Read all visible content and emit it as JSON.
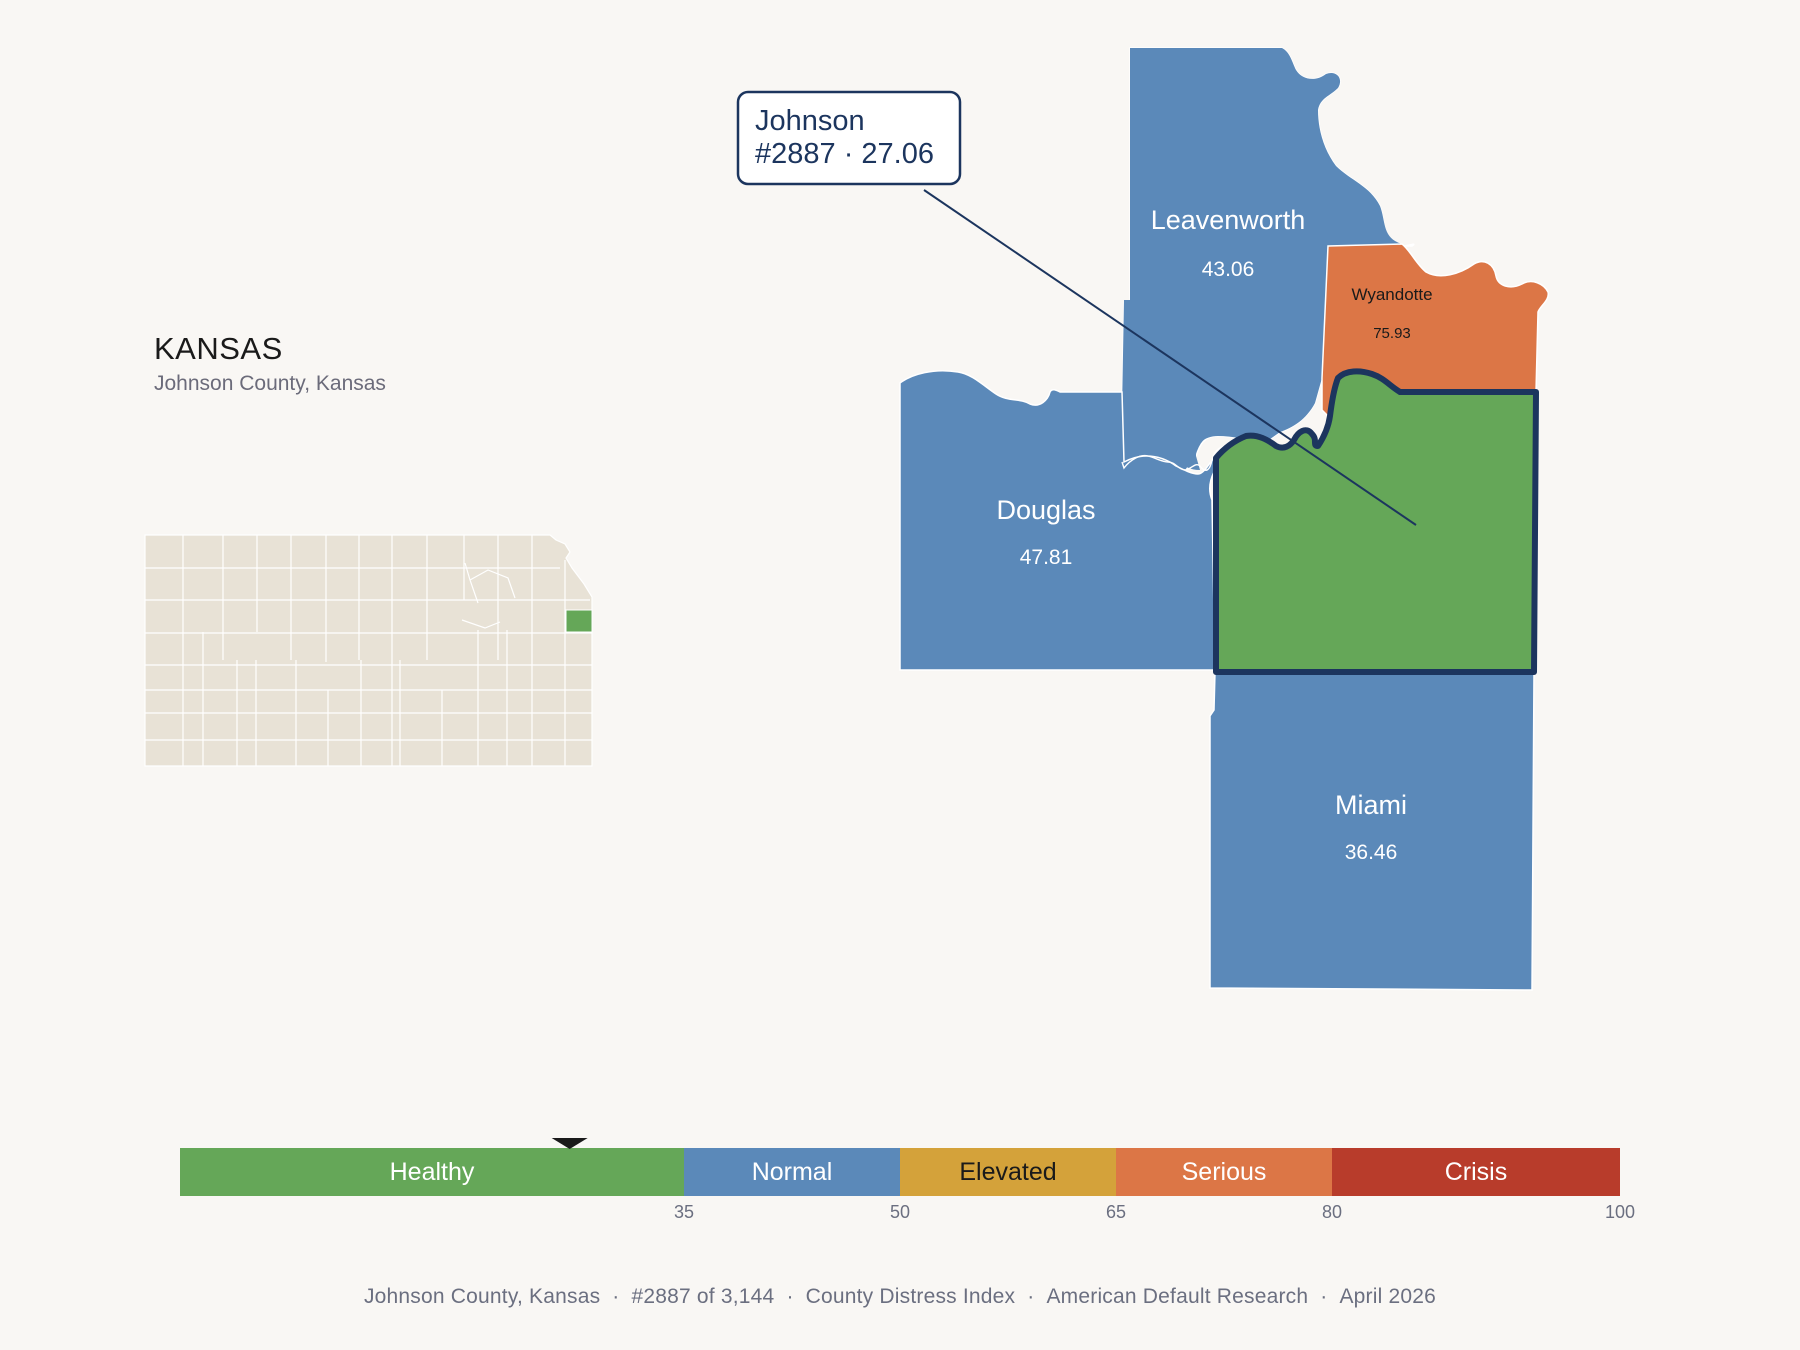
{
  "header": {
    "state_title": "KANSAS",
    "subtitle": "Johnson County, Kansas"
  },
  "callout": {
    "county": "Johnson",
    "detail": "#2887 · 27.06"
  },
  "counties": [
    {
      "name": "Leavenworth",
      "score": "43.06",
      "tier": "Normal",
      "color": "#5b89b9"
    },
    {
      "name": "Wyandotte",
      "score": "75.93",
      "tier": "Serious",
      "color": "#dc7646"
    },
    {
      "name": "Douglas",
      "score": "47.81",
      "tier": "Normal",
      "color": "#5b89b9"
    },
    {
      "name": "Johnson",
      "score": "27.06",
      "tier": "Healthy",
      "color": "#65a758",
      "selected": true
    },
    {
      "name": "Miami",
      "score": "36.46",
      "tier": "Normal",
      "color": "#5b89b9"
    }
  ],
  "legend": {
    "bands": [
      {
        "label": "Healthy",
        "min": 0,
        "max": 35,
        "color": "#65a758",
        "text_color": "#ffffff"
      },
      {
        "label": "Normal",
        "min": 35,
        "max": 50,
        "color": "#5b89b9",
        "text_color": "#ffffff"
      },
      {
        "label": "Elevated",
        "min": 50,
        "max": 65,
        "color": "#d4a23a",
        "text_color": "#1a1a1a"
      },
      {
        "label": "Serious",
        "min": 65,
        "max": 80,
        "color": "#dc7646",
        "text_color": "#ffffff"
      },
      {
        "label": "Crisis",
        "min": 80,
        "max": 100,
        "color": "#b83c2b",
        "text_color": "#ffffff"
      }
    ],
    "ticks": [
      "35",
      "50",
      "65",
      "80",
      "100"
    ],
    "marker_value": 27.06
  },
  "footer": {
    "county": "Johnson County, Kansas",
    "rank": "#2887 of 3,144",
    "index": "County Distress Index",
    "source": "American Default Research",
    "date": "April 2026"
  },
  "colors": {
    "background": "#f9f7f4",
    "highlight_outline": "#1c355e",
    "inset_fill": "#e8e2d6",
    "inset_highlight": "#65a758"
  }
}
